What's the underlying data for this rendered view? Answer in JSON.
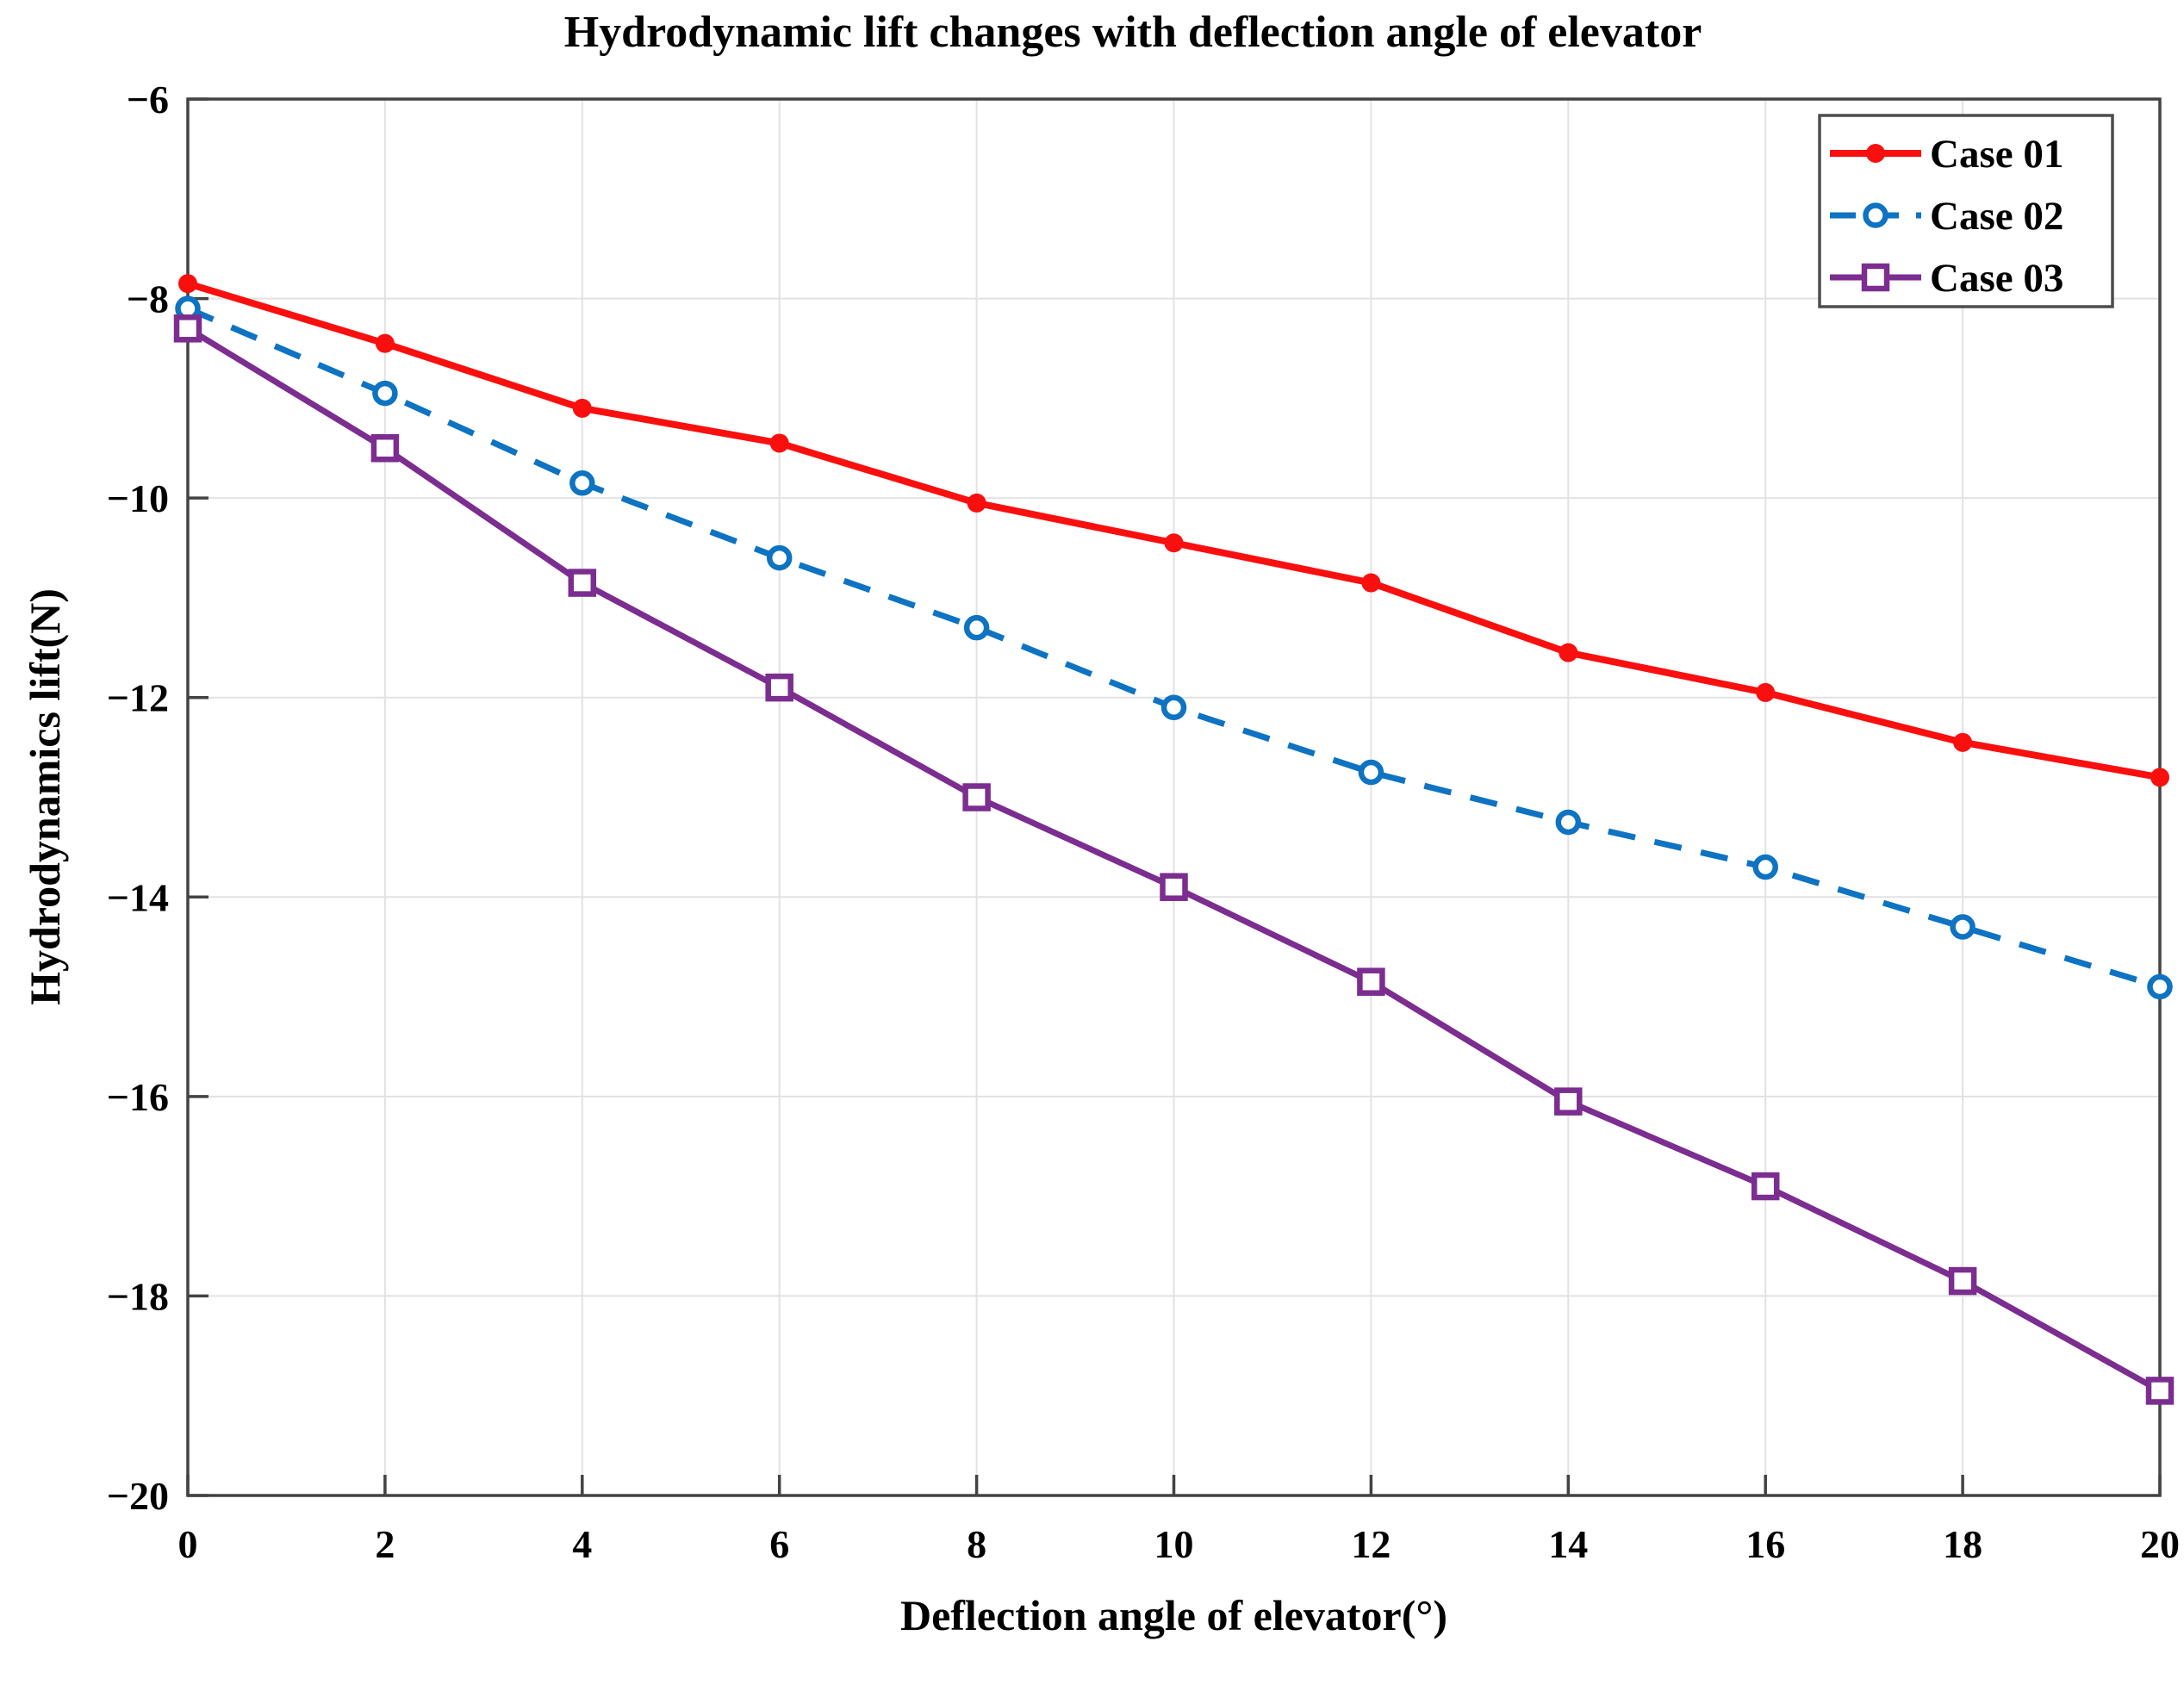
{
  "chart_data": {
    "type": "line",
    "title": "Hydrodynamic lift changes with deflection angle of elevator",
    "xlabel": "Deflection angle of elevator(°)",
    "ylabel": "Hydrodynamics lift(N)",
    "xlim": [
      0,
      20
    ],
    "ylim": [
      -20,
      -6
    ],
    "grid": true,
    "legend_position": "top-right",
    "x": [
      0,
      2,
      4,
      6,
      8,
      10,
      12,
      14,
      16,
      18,
      20
    ],
    "xtick_labels": [
      "0",
      "2",
      "4",
      "6",
      "8",
      "10",
      "12",
      "14",
      "16",
      "18",
      "20"
    ],
    "ytick_values": [
      -6,
      -8,
      -10,
      -12,
      -14,
      -16,
      -18,
      -20
    ],
    "ytick_labels": [
      "−6",
      "−8",
      "−10",
      "−12",
      "−14",
      "−16",
      "−18",
      "−20"
    ],
    "series": [
      {
        "name": "Case 01",
        "color": "#fa0f0f",
        "line_style": "solid",
        "marker": "filled-circle",
        "values": [
          -7.85,
          -8.45,
          -9.1,
          -9.45,
          -10.05,
          -10.45,
          -10.85,
          -11.55,
          -11.95,
          -12.45,
          -12.8
        ]
      },
      {
        "name": "Case 02",
        "color": "#0d73c2",
        "line_style": "dashed",
        "marker": "open-circle",
        "values": [
          -8.1,
          -8.95,
          -9.85,
          -10.6,
          -11.3,
          -12.1,
          -12.75,
          -13.25,
          -13.7,
          -14.3,
          -14.9
        ]
      },
      {
        "name": "Case 03",
        "color": "#7c2d90",
        "line_style": "solid",
        "marker": "open-square",
        "values": [
          -8.3,
          -9.5,
          -10.85,
          -11.9,
          -13.0,
          -13.9,
          -14.85,
          -16.05,
          -16.9,
          -17.85,
          -18.95
        ]
      }
    ]
  },
  "colors": {
    "background": "#ffffff",
    "grid": "#e2e2e2",
    "axis": "#434343",
    "tick": "#434343",
    "text": "#000000",
    "legend_border": "#4d4d4d",
    "legend_background": "#ffffff"
  }
}
